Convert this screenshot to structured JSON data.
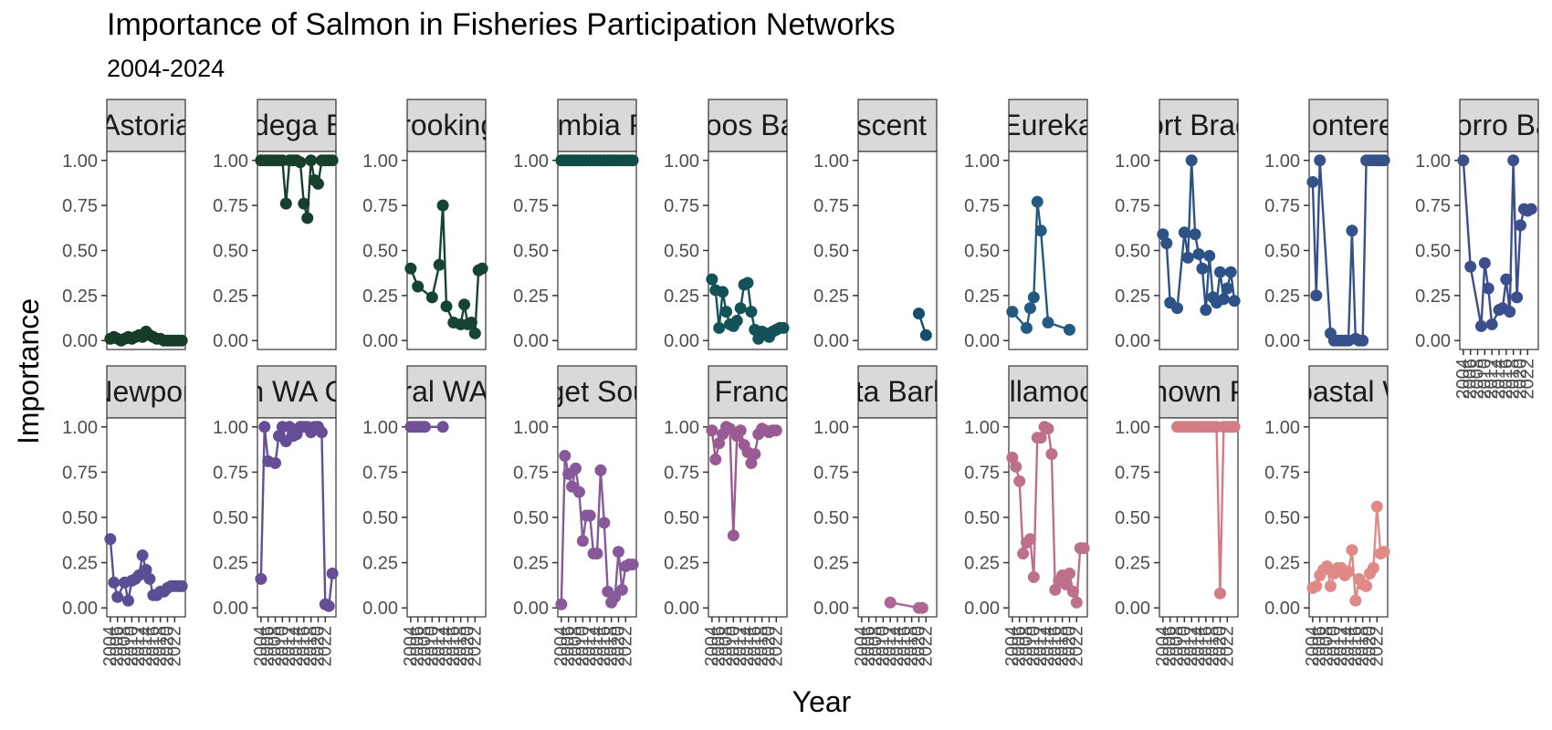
{
  "chart_data": {
    "type": "line",
    "title": "Importance of Salmon in Fisheries Participation Networks",
    "subtitle": "2004-2024",
    "xlabel": "Year",
    "ylabel": "Importance",
    "ylim": [
      0,
      1
    ],
    "y_ticks": [
      "0.00",
      "0.25",
      "0.50",
      "0.75",
      "1.00"
    ],
    "x_ticks": [
      "2004",
      "2006",
      "2008",
      "2010",
      "2012",
      "2014",
      "2016",
      "2018",
      "2020",
      "2022"
    ],
    "xlim": [
      2004,
      2024
    ],
    "grid": false,
    "legend": "none",
    "markers": true,
    "panels": [
      {
        "label": "Astoria",
        "color": "#173c2a",
        "x": [
          2004,
          2005,
          2006,
          2007,
          2008,
          2009,
          2010,
          2011,
          2012,
          2013,
          2014,
          2015,
          2016,
          2017,
          2018,
          2019,
          2020,
          2021,
          2022,
          2023,
          2024
        ],
        "y": [
          0.01,
          0.02,
          0.01,
          0.0,
          0.01,
          0.02,
          0.01,
          0.02,
          0.03,
          0.02,
          0.05,
          0.03,
          0.02,
          0.01,
          0.01,
          0.0,
          0.0,
          0.0,
          0.0,
          0.0,
          0.0
        ]
      },
      {
        "label": "Bodega Bay",
        "color": "#173f2d",
        "x": [
          2004,
          2005,
          2006,
          2007,
          2008,
          2009,
          2010,
          2011,
          2012,
          2013,
          2014,
          2015,
          2016,
          2017,
          2018,
          2019,
          2020,
          2021,
          2022,
          2023,
          2024
        ],
        "y": [
          1.0,
          1.0,
          1.0,
          1.0,
          1.0,
          1.0,
          1.0,
          0.76,
          1.0,
          1.0,
          1.0,
          0.99,
          0.76,
          0.68,
          1.0,
          0.89,
          0.87,
          1.0,
          1.0,
          1.0,
          1.0
        ]
      },
      {
        "label": "Brookings",
        "color": "#154432",
        "x": [
          2004,
          2006,
          2010,
          2012,
          2013,
          2014,
          2016,
          2018,
          2019,
          2020,
          2021,
          2022,
          2023,
          2024
        ],
        "y": [
          0.4,
          0.3,
          0.24,
          0.42,
          0.75,
          0.19,
          0.1,
          0.09,
          0.2,
          0.09,
          0.1,
          0.04,
          0.39,
          0.4
        ]
      },
      {
        "label": "Columbia River",
        "color": "#0f4c46",
        "x": [
          2004,
          2005,
          2006,
          2007,
          2008,
          2009,
          2010,
          2011,
          2012,
          2013,
          2014,
          2015,
          2016,
          2017,
          2018,
          2019,
          2020,
          2021,
          2022,
          2023,
          2024
        ],
        "y": [
          1,
          1,
          1,
          1,
          1,
          1,
          1,
          1,
          1,
          1,
          1,
          1,
          1,
          1,
          1,
          1,
          1,
          1,
          1,
          1,
          1
        ]
      },
      {
        "label": "Coos Bay",
        "color": "#14525a",
        "x": [
          2004,
          2005,
          2006,
          2007,
          2008,
          2009,
          2010,
          2011,
          2012,
          2013,
          2014,
          2015,
          2016,
          2017,
          2018,
          2019,
          2020,
          2021,
          2022,
          2023,
          2024
        ],
        "y": [
          0.34,
          0.28,
          0.07,
          0.27,
          0.16,
          0.09,
          0.08,
          0.11,
          0.18,
          0.31,
          0.32,
          0.16,
          0.06,
          0.01,
          0.05,
          0.04,
          0.02,
          0.05,
          0.06,
          0.07,
          0.07
        ]
      },
      {
        "label": "Crescent City",
        "color": "#174e6b",
        "x": [
          2020,
          2022
        ],
        "y": [
          0.15,
          0.03
        ]
      },
      {
        "label": "Eureka",
        "color": "#225a82",
        "x": [
          2004,
          2008,
          2009,
          2010,
          2011,
          2012,
          2014,
          2020
        ],
        "y": [
          0.16,
          0.07,
          0.18,
          0.24,
          0.77,
          0.61,
          0.1,
          0.06
        ]
      },
      {
        "label": "Fort Bragg",
        "color": "#2d5287",
        "x": [
          2004,
          2005,
          2006,
          2008,
          2010,
          2011,
          2012,
          2013,
          2014,
          2015,
          2016,
          2017,
          2018,
          2019,
          2020,
          2021,
          2022,
          2023,
          2024
        ],
        "y": [
          0.59,
          0.54,
          0.21,
          0.18,
          0.6,
          0.46,
          1.0,
          0.59,
          0.48,
          0.4,
          0.17,
          0.47,
          0.24,
          0.21,
          0.38,
          0.23,
          0.29,
          0.38,
          0.22
        ]
      },
      {
        "label": "Monterey",
        "color": "#36508a",
        "x": [
          2004,
          2005,
          2006,
          2009,
          2010,
          2011,
          2012,
          2013,
          2014,
          2015,
          2016,
          2017,
          2018,
          2019,
          2020,
          2021,
          2022,
          2023,
          2024
        ],
        "y": [
          0.88,
          0.25,
          1.0,
          0.04,
          0.0,
          0.0,
          0.0,
          0.0,
          0.0,
          0.61,
          0.01,
          0.0,
          0.0,
          1.0,
          1.0,
          1.0,
          1.0,
          1.0,
          1.0
        ]
      },
      {
        "label": "Morro Bay",
        "color": "#3d4e8c",
        "x": [
          2004,
          2006,
          2009,
          2010,
          2011,
          2012,
          2014,
          2015,
          2016,
          2017,
          2018,
          2019,
          2020,
          2021,
          2022,
          2023
        ],
        "y": [
          1.0,
          0.41,
          0.08,
          0.43,
          0.29,
          0.09,
          0.17,
          0.18,
          0.34,
          0.16,
          1.0,
          0.24,
          0.64,
          0.73,
          0.72,
          0.73
        ]
      },
      {
        "label": "Newport",
        "color": "#5b4e95",
        "x": [
          2004,
          2005,
          2006,
          2008,
          2009,
          2010,
          2011,
          2012,
          2013,
          2014,
          2015,
          2016,
          2017,
          2018,
          2019,
          2020,
          2021,
          2022,
          2023,
          2024
        ],
        "y": [
          0.38,
          0.14,
          0.06,
          0.14,
          0.04,
          0.15,
          0.16,
          0.18,
          0.29,
          0.21,
          0.16,
          0.07,
          0.07,
          0.09,
          0.09,
          0.11,
          0.12,
          0.12,
          0.12,
          0.12
        ]
      },
      {
        "label": "North WA Coast",
        "color": "#654e95",
        "x": [
          2004,
          2005,
          2006,
          2008,
          2009,
          2010,
          2011,
          2012,
          2013,
          2014,
          2015,
          2016,
          2017,
          2018,
          2019,
          2020,
          2021,
          2022,
          2023,
          2024
        ],
        "y": [
          0.16,
          1.0,
          0.81,
          0.8,
          0.95,
          1.0,
          0.92,
          1.0,
          0.95,
          0.96,
          1.0,
          1.0,
          1.0,
          0.97,
          1.0,
          1.0,
          0.97,
          0.02,
          0.01,
          0.19
        ]
      },
      {
        "label": "South and Central WA Coastal Waters",
        "color": "#6f5195",
        "x": [
          2004,
          2005,
          2006,
          2007,
          2008,
          2013
        ],
        "y": [
          1.0,
          1.0,
          1.0,
          1.0,
          1.0,
          1.0
        ]
      },
      {
        "label": "Puget Sound",
        "color": "#87589a",
        "x": [
          2004,
          2005,
          2006,
          2007,
          2008,
          2009,
          2010,
          2011,
          2012,
          2013,
          2014,
          2015,
          2016,
          2017,
          2018,
          2019,
          2020,
          2021,
          2022,
          2023,
          2024
        ],
        "y": [
          0.02,
          0.84,
          0.74,
          0.67,
          0.77,
          0.64,
          0.37,
          0.51,
          0.51,
          0.3,
          0.3,
          0.76,
          0.47,
          0.09,
          0.03,
          0.06,
          0.31,
          0.1,
          0.23,
          0.24,
          0.24
        ]
      },
      {
        "label": "San Francisco",
        "color": "#9a5b93",
        "x": [
          2004,
          2005,
          2006,
          2007,
          2008,
          2009,
          2010,
          2011,
          2012,
          2013,
          2014,
          2015,
          2016,
          2017,
          2018,
          2019,
          2020,
          2021,
          2022
        ],
        "y": [
          0.98,
          0.82,
          0.91,
          0.96,
          1.0,
          0.99,
          0.4,
          0.95,
          0.98,
          0.9,
          0.86,
          0.8,
          0.85,
          0.96,
          0.99,
          0.98,
          0.97,
          0.98,
          0.98
        ]
      },
      {
        "label": "Santa Barbara",
        "color": "#ad6691",
        "x": [
          2012,
          2020,
          2021
        ],
        "y": [
          0.03,
          0.0,
          0.0
        ]
      },
      {
        "label": "Tillamook",
        "color": "#bd6f8c",
        "x": [
          2004,
          2005,
          2006,
          2007,
          2008,
          2009,
          2010,
          2011,
          2012,
          2013,
          2014,
          2015,
          2016,
          2017,
          2018,
          2019,
          2020,
          2021,
          2022,
          2023,
          2024
        ],
        "y": [
          0.83,
          0.78,
          0.7,
          0.3,
          0.36,
          0.38,
          0.17,
          0.94,
          0.94,
          1.0,
          0.99,
          0.85,
          0.1,
          0.15,
          0.18,
          0.13,
          0.19,
          0.09,
          0.03,
          0.33,
          0.33
        ]
      },
      {
        "label": "Unknown Ports",
        "color": "#d37c86",
        "x": [
          2008,
          2009,
          2010,
          2011,
          2012,
          2013,
          2014,
          2015,
          2016,
          2017,
          2018,
          2019,
          2020,
          2021,
          2022,
          2023,
          2024
        ],
        "y": [
          1,
          1,
          1,
          1,
          1,
          1,
          1,
          1,
          1,
          1,
          1,
          1,
          0.08,
          1,
          1,
          1,
          1
        ]
      },
      {
        "label": "WA Coastal Waters",
        "color": "#e08a87",
        "x": [
          2004,
          2005,
          2006,
          2007,
          2008,
          2009,
          2010,
          2011,
          2012,
          2013,
          2014,
          2015,
          2016,
          2017,
          2018,
          2019,
          2020,
          2021,
          2022,
          2023,
          2024
        ],
        "y": [
          0.11,
          0.12,
          0.18,
          0.21,
          0.23,
          0.12,
          0.19,
          0.22,
          0.22,
          0.18,
          0.2,
          0.32,
          0.04,
          0.16,
          0.13,
          0.12,
          0.19,
          0.22,
          0.56,
          0.3,
          0.31
        ]
      }
    ]
  }
}
